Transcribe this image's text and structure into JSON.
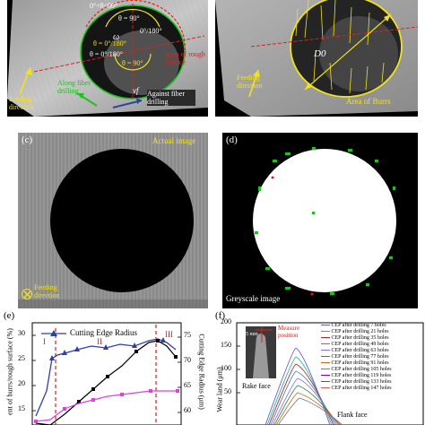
{
  "panel_a": {
    "angle_labels": [
      "0°<θ<90°",
      "θ = 90°",
      "0°/180°",
      "θ = 0°/180°",
      "θ = 90°",
      "θ = 0°/180°"
    ],
    "omega": "ω",
    "vf": "vf",
    "area_rough": "Area of rough surface",
    "along": "Along fiber drilling",
    "against": "Against fiber drilling",
    "feeding": "Feeding direction"
  },
  "panel_b": {
    "d0": "D0",
    "burrs": "Area of Burrs",
    "feeding": "Feeding direction"
  },
  "panel_c": {
    "letter": "(c)",
    "actual": "Actual image",
    "feeding": "Feeding direction"
  },
  "panel_d": {
    "letter": "(d)",
    "greyscale": "Greyscale image"
  },
  "panel_e": {
    "letter": "(e)",
    "legend": "Cutting Edge Radius",
    "stages": [
      "I",
      "II",
      "III"
    ],
    "ylabel_left": "ent of burrs/rough surface (%)",
    "ylabel_right": "Cutting Edge Radius (μm)",
    "left_ticks": [
      "30",
      "25",
      "20",
      "15"
    ],
    "right_ticks": [
      "75",
      "70",
      "65",
      "60"
    ]
  },
  "panel_f": {
    "letter": "(f)",
    "y_ticks": [
      "200",
      "150",
      "100",
      "50"
    ],
    "measure": "Measure position",
    "scale": "5 mm",
    "ylabel": "Wear land (μm)",
    "rake": "Rake face",
    "flank": "Flank face",
    "legend": [
      "CEP after drilling 7 holes",
      "CEP after drilling 21 holes",
      "CEP after drilling 35 holes",
      "CEP after drilling 49 holes",
      "CEP after drilling 63 holes",
      "CEP after drilling 77 holes",
      "CEP after drilling 91 holes",
      "CEP after drilling 105 holes",
      "CEP after drilling 119 holes",
      "CEP after drilling 133 holes",
      "CEP after drilling 147 holes"
    ]
  },
  "colors": {
    "yellow": "#f2e21c",
    "red": "#e0201c",
    "green": "#20c020",
    "blue": "#2f3fa8",
    "magenta": "#e040e0"
  }
}
